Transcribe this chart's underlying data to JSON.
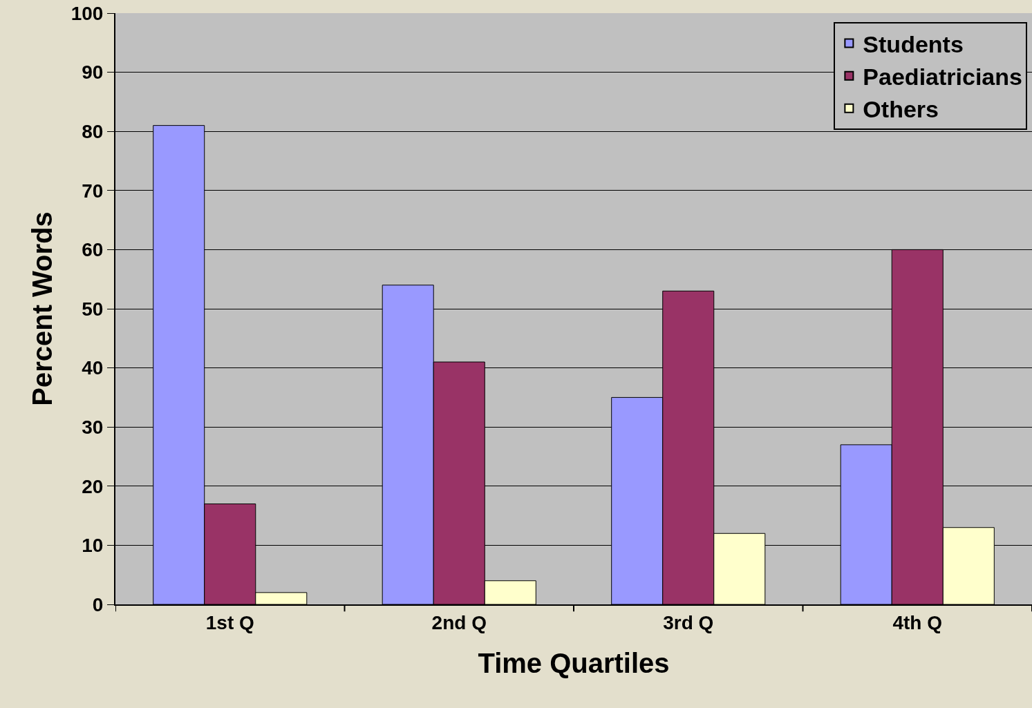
{
  "chart_data": {
    "type": "bar",
    "xlabel": "Time Quartiles",
    "ylabel": "Percent Words",
    "categories": [
      "1st Q",
      "2nd Q",
      "3rd Q",
      "4th Q"
    ],
    "series": [
      {
        "name": "Students",
        "color": "#9999ff",
        "values": [
          81,
          54,
          35,
          27
        ]
      },
      {
        "name": "Paediatricians",
        "color": "#993366",
        "values": [
          17,
          41,
          53,
          60
        ]
      },
      {
        "name": "Others",
        "color": "#ffffcc",
        "values": [
          2,
          4,
          12,
          13
        ]
      }
    ],
    "ylim": [
      0,
      100
    ],
    "yticks": [
      0,
      10,
      20,
      30,
      40,
      50,
      60,
      70,
      80,
      90,
      100
    ],
    "grid": "y",
    "legend": "top right"
  }
}
